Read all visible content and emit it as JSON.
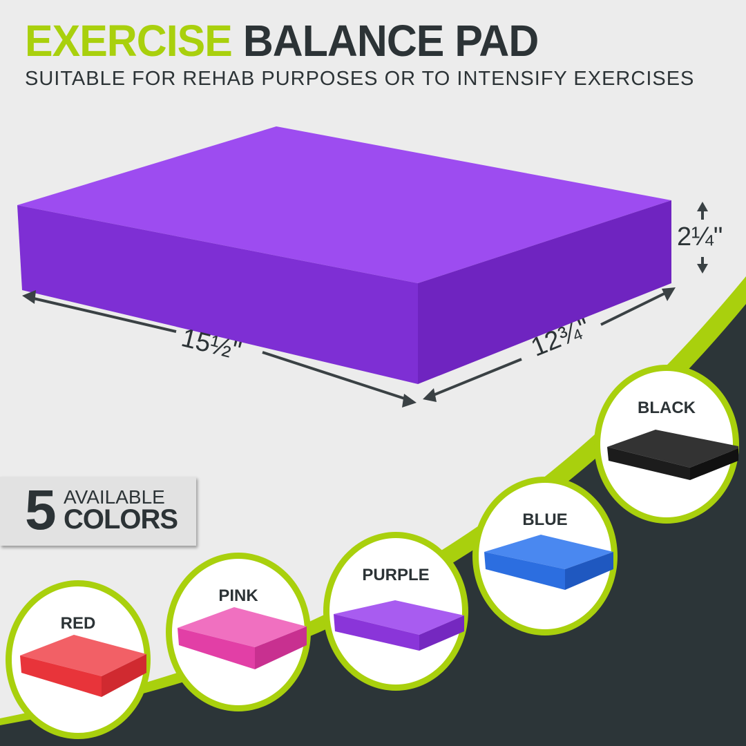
{
  "header": {
    "title_accent": "EXERCISE",
    "title_main": "BALANCE PAD",
    "subtitle": "SUITABLE FOR REHAB PURPOSES OR TO INTENSIFY EXERCISES"
  },
  "dimensions": {
    "length": "15½\"",
    "width": "12¾\"",
    "height": "2¼\""
  },
  "badge": {
    "number": "5",
    "line1": "AVAILABLE",
    "line2": "COLORS"
  },
  "colors": [
    {
      "label": "RED",
      "hex": "#e8343a"
    },
    {
      "label": "PINK",
      "hex": "#e23fa6"
    },
    {
      "label": "PURPLE",
      "hex": "#8a35d9"
    },
    {
      "label": "BLUE",
      "hex": "#2c6ee0"
    },
    {
      "label": "BLACK",
      "hex": "#1c1c1c"
    }
  ],
  "theme": {
    "accent": "#a9d00d",
    "dark": "#2c3538",
    "background": "#ececec",
    "product": "#8d38e0"
  }
}
